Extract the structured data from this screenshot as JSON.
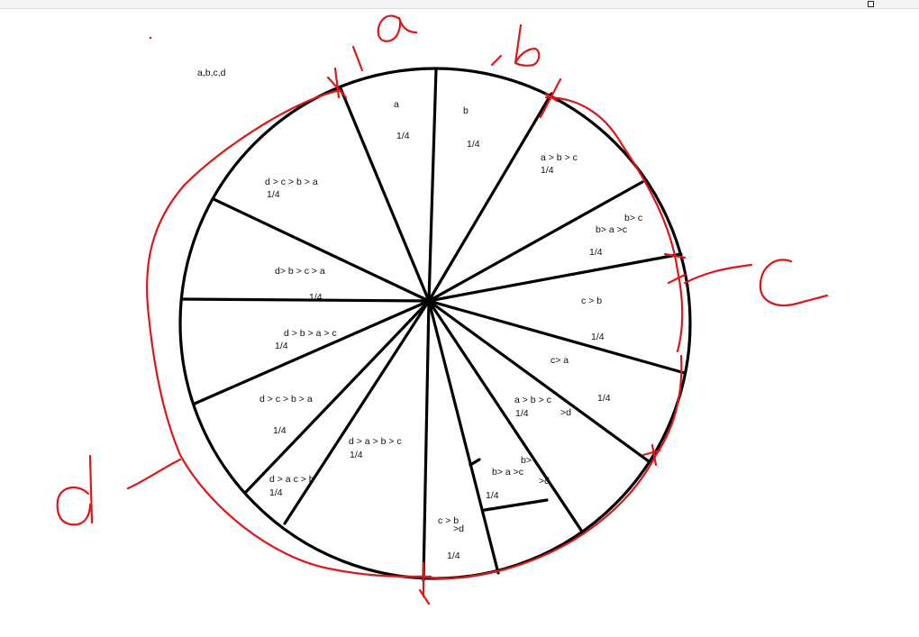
{
  "top_note": "a,b,c,d",
  "player_labels": {
    "a": "a",
    "b": "b",
    "c": "c",
    "d": "d"
  },
  "colors": {
    "ink": "#000000",
    "annotation": "#e01616"
  },
  "sector_labels": [
    {
      "text": "a"
    },
    {
      "text": "1/4"
    },
    {
      "text": "b"
    },
    {
      "text": "1/4"
    },
    {
      "text": "a > b > c"
    },
    {
      "text": "1/4"
    },
    {
      "text": "b> c"
    },
    {
      "text": "b> a >c"
    },
    {
      "text": "1/4"
    },
    {
      "text": "c > b"
    },
    {
      "text": "1/4"
    },
    {
      "text": "c> a"
    },
    {
      "text": "1/4"
    },
    {
      "text": "a > b > c"
    },
    {
      "text": ">d"
    },
    {
      "text": "1/4"
    },
    {
      "text": "b>"
    },
    {
      "text": "b> a >c"
    },
    {
      "text": ">d"
    },
    {
      "text": "1/4"
    },
    {
      "text": "c > b"
    },
    {
      "text": ">d"
    },
    {
      "text": "1/4"
    },
    {
      "text": "d > a > b > c"
    },
    {
      "text": "1/4"
    },
    {
      "text": "d > a c > b"
    },
    {
      "text": "1/4"
    },
    {
      "text": "d > c > b > a"
    },
    {
      "text": "1/4"
    },
    {
      "text": "d > b  > a > c"
    },
    {
      "text": "1/4"
    },
    {
      "text": "d> b > c > a"
    },
    {
      "text": "1/4"
    },
    {
      "text": "d > c > b > a"
    },
    {
      "text": "1/4"
    }
  ]
}
